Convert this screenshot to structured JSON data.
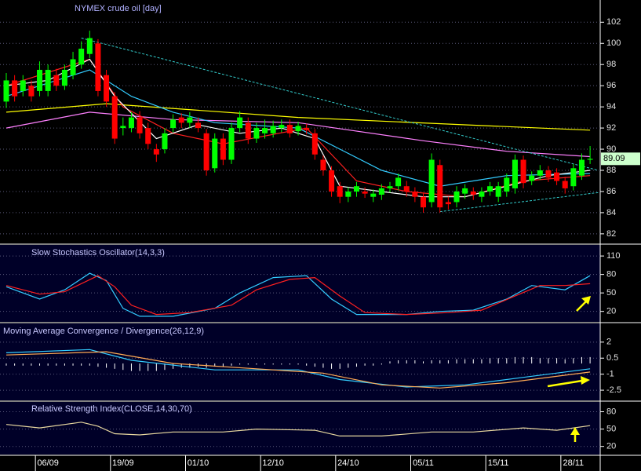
{
  "chart_data": [
    {
      "type": "candlestick",
      "title": "NYMEX crude oil [day]",
      "categories": [
        null,
        null,
        null,
        null,
        null,
        "06/09",
        null,
        null,
        null,
        null,
        null,
        null,
        null,
        null,
        "19/09",
        null,
        null,
        null,
        null,
        null,
        null,
        null,
        null,
        "01/10",
        null,
        null,
        null,
        null,
        null,
        null,
        null,
        null,
        "12/10",
        null,
        null,
        null,
        null,
        null,
        null,
        null,
        null,
        "24/10",
        null,
        null,
        null,
        null,
        null,
        null,
        null,
        null,
        "05/11",
        null,
        null,
        null,
        null,
        null,
        null,
        null,
        null,
        "15/11",
        null,
        null,
        null,
        null,
        null,
        null,
        null,
        null,
        "28/11",
        null,
        null
      ],
      "open": [
        94.5,
        96.5,
        95.5,
        96,
        95.5,
        95.5,
        97,
        96,
        97,
        98,
        99,
        100,
        97,
        95,
        92,
        92,
        93,
        92,
        90,
        90,
        92,
        93,
        92.5,
        92.5,
        91.5,
        88.2,
        91,
        89,
        92,
        92.5,
        91,
        91.5,
        91.5,
        92,
        92.3,
        91.7,
        92,
        91.5,
        89,
        88,
        86.5,
        85.5,
        86,
        86,
        85.5,
        85.7,
        86.3,
        86.5,
        86.5,
        86,
        85.5,
        85,
        88.5,
        85,
        85,
        85.8,
        86,
        85.5,
        86,
        85.5,
        86,
        86.3,
        89,
        87,
        87.5,
        88,
        87.8,
        87,
        86.5,
        87.5,
        89
      ],
      "close": [
        96.5,
        95,
        96.5,
        95,
        97.5,
        97.5,
        96,
        97.5,
        98.5,
        99.5,
        100.5,
        95.5,
        94.5,
        91,
        92.2,
        93,
        91.5,
        90.5,
        89.5,
        91.5,
        92.8,
        92.5,
        93,
        92,
        88,
        91,
        89,
        92,
        93,
        91,
        92,
        92,
        92.2,
        92.3,
        91.5,
        92.2,
        91.8,
        89.5,
        88,
        86,
        85.5,
        86,
        86.5,
        85.8,
        85.8,
        86.3,
        86.5,
        87.3,
        86,
        85.5,
        84.5,
        89,
        84.5,
        84.8,
        86,
        86.3,
        85.7,
        86,
        86.5,
        86.5,
        87.3,
        89,
        86.8,
        87.5,
        88,
        87.3,
        87,
        86.3,
        88.2,
        89,
        89.09
      ],
      "high": [
        97.2,
        97,
        97,
        96.5,
        98.3,
        98,
        97.6,
        98,
        99.2,
        100.2,
        101.2,
        100.4,
        97.5,
        95.4,
        93,
        93.5,
        93.6,
        92.5,
        90.5,
        92,
        93.3,
        93.4,
        93.5,
        93,
        91.9,
        91.5,
        91.5,
        92.5,
        93.6,
        93,
        92.5,
        92.8,
        92.7,
        92.8,
        92.8,
        92.6,
        92.4,
        91.9,
        89.4,
        88.4,
        86.9,
        86.4,
        86.9,
        86.4,
        86.2,
        86.7,
        86.9,
        87.7,
        87,
        86.4,
        85.9,
        89.6,
        89,
        85.5,
        86.5,
        86.7,
        86.4,
        86.4,
        86.9,
        86.9,
        87.7,
        89.5,
        89.4,
        87.9,
        88.5,
        88.4,
        88.2,
        87.4,
        88.6,
        89.6,
        90.3
      ],
      "low": [
        93.9,
        94.5,
        95,
        94.5,
        95,
        95,
        95.5,
        95.6,
        96.6,
        97.6,
        98.6,
        95,
        94,
        90.5,
        91.3,
        91.6,
        91,
        90,
        88.8,
        89.6,
        91.6,
        92,
        92,
        91.6,
        87.5,
        87.8,
        88.5,
        88.6,
        91.6,
        90.5,
        90.6,
        91,
        91.1,
        91.6,
        91.1,
        91.3,
        91.4,
        89,
        87.5,
        85.5,
        84.9,
        85,
        85.5,
        85.4,
        85,
        85.2,
        85.9,
        86.1,
        85.5,
        85,
        84,
        84.5,
        84,
        84.3,
        84.5,
        85.3,
        85.2,
        85,
        85.6,
        85,
        85.5,
        85.8,
        86.3,
        86.6,
        87.1,
        86.9,
        86.6,
        85.8,
        86.1,
        87.1,
        88.6
      ],
      "ylim": [
        81.1,
        104.1
      ],
      "yticks": [
        82,
        84,
        86,
        88,
        90,
        92,
        94,
        96,
        98,
        100,
        102
      ],
      "up_color": "#00ff00",
      "down_color": "#ff0000",
      "grid": true,
      "last_value": 89.09,
      "series": [
        {
          "color": "#ffff00",
          "x": [
            0,
            12,
            35,
            55,
            70
          ],
          "values": [
            93.5,
            94.3,
            93,
            92.3,
            91.8
          ]
        },
        {
          "color": "#ff80ff",
          "x": [
            0,
            10,
            20,
            35,
            50,
            60,
            70
          ],
          "values": [
            92,
            93.5,
            92.8,
            92.5,
            90.8,
            89.8,
            89.3
          ]
        },
        {
          "color": "#33ccff",
          "x": [
            0,
            10,
            15,
            20,
            25,
            35,
            40,
            45,
            52,
            60,
            70
          ],
          "values": [
            95,
            97.5,
            95,
            93.5,
            92.5,
            92,
            90,
            88,
            86.5,
            87.5,
            87.7
          ]
        },
        {
          "color": "#ff2020",
          "x": [
            0,
            10,
            14,
            20,
            26,
            36,
            42,
            48,
            55,
            62,
            70
          ],
          "values": [
            96,
            98.5,
            94,
            91.5,
            90.5,
            92,
            87,
            86,
            85.5,
            87,
            87.5
          ]
        },
        {
          "color": "#ffffff",
          "x": [
            0,
            5,
            10,
            13,
            18,
            23,
            28,
            33,
            37,
            40,
            45,
            50,
            55,
            60,
            65,
            70
          ],
          "values": [
            96,
            96.5,
            98.5,
            95,
            91,
            92.3,
            91.5,
            92,
            91,
            86.5,
            86,
            85.5,
            85.5,
            86.5,
            87.5,
            88
          ]
        }
      ],
      "trendlines": [
        {
          "color": "#33cccc",
          "x": [
            9,
            71
          ],
          "values": [
            100.5,
            88
          ]
        },
        {
          "color": "#33cccc",
          "x": [
            52,
            71
          ],
          "values": [
            84.1,
            85.9
          ]
        }
      ]
    },
    {
      "type": "line",
      "title": "Slow Stochastics Oscillator(14,3,3)",
      "ylim": [
        3,
        128
      ],
      "yticks": [
        20,
        50,
        80,
        110
      ],
      "grid": true,
      "series": [
        {
          "color": "#33ccff",
          "x": [
            0,
            4,
            7,
            10,
            12,
            14,
            16,
            20,
            25,
            28,
            32,
            36,
            39,
            42,
            48,
            52,
            56,
            60,
            63,
            67,
            70
          ],
          "values": [
            60,
            40,
            55,
            82,
            70,
            25,
            12,
            12,
            25,
            50,
            75,
            78,
            40,
            15,
            15,
            20,
            22,
            40,
            62,
            55,
            78
          ]
        },
        {
          "color": "#ff2020",
          "x": [
            0,
            4,
            7,
            11,
            13,
            15,
            18,
            22,
            27,
            30,
            34,
            37,
            40,
            43,
            48,
            53,
            57,
            61,
            64,
            67,
            70
          ],
          "values": [
            62,
            48,
            52,
            78,
            60,
            30,
            15,
            18,
            30,
            55,
            72,
            75,
            45,
            18,
            15,
            18,
            22,
            45,
            62,
            62,
            65
          ]
        }
      ]
    },
    {
      "type": "line",
      "title": "Moving Average Convergence / Divergence(26,12,9)",
      "ylim": [
        -3.45,
        3.75
      ],
      "yticks": [
        -2.5,
        -1,
        0.5,
        2
      ],
      "grid": true,
      "series": [
        {
          "kind": "bar",
          "color": "#ffffff",
          "x": [
            0,
            1,
            2,
            3,
            4,
            5,
            6,
            7,
            8,
            9,
            10,
            11,
            12,
            13,
            14,
            15,
            16,
            17,
            18,
            19,
            20,
            21,
            22,
            23,
            24,
            25,
            26,
            27,
            28,
            29,
            30,
            31,
            32,
            33,
            34,
            35,
            36,
            37,
            38,
            39,
            40,
            41,
            42,
            43,
            44,
            45,
            46,
            47,
            48,
            49,
            50,
            51,
            52,
            53,
            54,
            55,
            56,
            57,
            58,
            59,
            60,
            61,
            62,
            63,
            64,
            65,
            66,
            67,
            68,
            69,
            70
          ],
          "values": [
            -0.2,
            -0.2,
            -0.2,
            -0.2,
            -0.2,
            -0.2,
            -0.2,
            -0.2,
            -0.2,
            -0.2,
            -0.2,
            -0.3,
            -0.4,
            -0.5,
            -0.6,
            -0.7,
            -0.7,
            -0.7,
            -0.7,
            -0.6,
            -0.5,
            -0.4,
            -0.4,
            -0.3,
            -0.4,
            -0.3,
            -0.3,
            -0.2,
            -0.1,
            -0.1,
            -0.1,
            -0.1,
            -0.1,
            -0.1,
            -0.1,
            -0.1,
            -0.2,
            -0.3,
            -0.4,
            -0.5,
            -0.5,
            -0.4,
            -0.3,
            -0.2,
            -0.2,
            -0.1,
            0.2,
            0.3,
            0.3,
            0.3,
            0.2,
            0.3,
            0.3,
            0.3,
            0.4,
            0.4,
            0.4,
            0.4,
            0.5,
            0.5,
            0.5,
            0.6,
            0.6,
            0.6,
            0.5,
            0.5,
            0.5,
            0.4,
            0.5,
            0.6,
            0.6
          ]
        },
        {
          "color": "#33ccff",
          "x": [
            0,
            10,
            15,
            25,
            35,
            40,
            48,
            55,
            62,
            70
          ],
          "values": [
            1,
            1.3,
            0.3,
            -0.6,
            -0.6,
            -1.5,
            -2.2,
            -2,
            -1.3,
            -0.5
          ]
        },
        {
          "color": "#ffaa55",
          "x": [
            0,
            12,
            20,
            30,
            38,
            45,
            52,
            60,
            70
          ],
          "values": [
            0.8,
            1.1,
            0,
            -0.5,
            -0.9,
            -2,
            -2.3,
            -1.8,
            -0.8
          ]
        }
      ]
    },
    {
      "type": "line",
      "title": "Relative Strength Index(CLOSE,14,30,70)",
      "ylim": [
        6,
        97
      ],
      "yticks": [
        20,
        50,
        80
      ],
      "grid": true,
      "series": [
        {
          "color": "#e8d8a0",
          "x": [
            0,
            4,
            9,
            11,
            13,
            16,
            20,
            26,
            30,
            37,
            40,
            45,
            51,
            56,
            62,
            66,
            70
          ],
          "values": [
            58,
            52,
            62,
            55,
            42,
            40,
            45,
            45,
            50,
            48,
            38,
            38,
            45,
            45,
            52,
            48,
            56
          ]
        }
      ]
    }
  ]
}
